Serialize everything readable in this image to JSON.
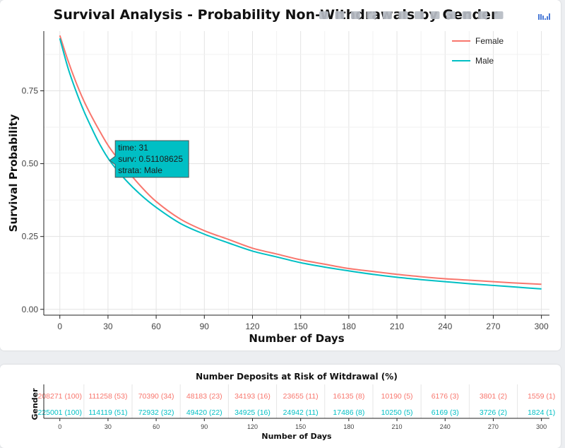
{
  "chart_data": {
    "type": "line",
    "title": "Survival Analysis - Probability Non-Withdrawals by Gender",
    "xlabel": "Number of Days",
    "ylabel": "Survival Probability",
    "xlim": [
      -10,
      305
    ],
    "ylim": [
      -0.02,
      0.955
    ],
    "x_ticks": [
      0,
      30,
      60,
      90,
      120,
      150,
      180,
      210,
      240,
      270,
      300
    ],
    "x_tick_labels": [
      "0",
      "30",
      "60",
      "90",
      "120",
      "150",
      "180",
      "210",
      "240",
      "270",
      "300"
    ],
    "y_ticks": [
      0,
      0.25,
      0.5,
      0.75
    ],
    "y_tick_labels": [
      "0.00",
      "0.25",
      "0.50",
      "0.75"
    ],
    "grid": true,
    "legend_position": "top-right",
    "series": [
      {
        "name": "Female",
        "color": "#f8766d",
        "x": [
          0,
          5,
          10,
          15,
          20,
          25,
          31,
          40,
          50,
          60,
          75,
          90,
          105,
          120,
          135,
          150,
          165,
          180,
          195,
          210,
          225,
          240,
          255,
          270,
          285,
          300
        ],
        "y": [
          0.94,
          0.855,
          0.78,
          0.715,
          0.66,
          0.61,
          0.555,
          0.49,
          0.425,
          0.37,
          0.31,
          0.27,
          0.24,
          0.21,
          0.19,
          0.17,
          0.155,
          0.14,
          0.13,
          0.12,
          0.112,
          0.105,
          0.1,
          0.095,
          0.09,
          0.086
        ]
      },
      {
        "name": "Male",
        "color": "#00bfc4",
        "x": [
          0,
          5,
          10,
          15,
          20,
          25,
          31,
          40,
          50,
          60,
          75,
          90,
          105,
          120,
          135,
          150,
          165,
          180,
          195,
          210,
          225,
          240,
          255,
          270,
          285,
          300
        ],
        "y": [
          0.93,
          0.83,
          0.75,
          0.68,
          0.62,
          0.565,
          0.511,
          0.45,
          0.395,
          0.35,
          0.295,
          0.258,
          0.228,
          0.2,
          0.18,
          0.16,
          0.145,
          0.132,
          0.12,
          0.11,
          0.102,
          0.095,
          0.088,
          0.082,
          0.076,
          0.07
        ]
      }
    ],
    "tooltip": {
      "series": "Male",
      "x": 31,
      "y": 0.51108625,
      "lines": [
        "time: 31",
        "surv: 0.51108625",
        "strata: Male"
      ]
    }
  },
  "risk_table": {
    "title": "Number Deposits at Risk of Witdrawal (%)",
    "ylabel": "Gender",
    "xlabel": "Number of Days",
    "x_ticks": [
      "0",
      "30",
      "60",
      "90",
      "120",
      "150",
      "180",
      "210",
      "240",
      "270",
      "300"
    ],
    "rows": [
      {
        "name": "Female",
        "color": "#f8766d",
        "cells": [
          "208271 (100)",
          "111258 (53)",
          "70390 (34)",
          "48183 (23)",
          "34193 (16)",
          "23655 (11)",
          "16135 (8)",
          "10190 (5)",
          "6176 (3)",
          "3801 (2)",
          "1559 (1)"
        ]
      },
      {
        "name": "Male",
        "color": "#00bfc4",
        "cells": [
          "225001 (100)",
          "114119 (51)",
          "72932 (32)",
          "49420 (22)",
          "34925 (16)",
          "24942 (11)",
          "17486 (8)",
          "10250 (5)",
          "6169 (3)",
          "3726 (2)",
          "1824 (1)"
        ]
      }
    ]
  },
  "modebar": {
    "buttons": [
      "camera-icon",
      "zoom-icon",
      "pan-icon",
      "box-select-icon",
      "lasso-icon",
      "zoom-in-icon",
      "zoom-out-icon",
      "autoscale-icon",
      "reset-axes-icon",
      "spike-lines-icon",
      "hover-closest-icon",
      "hover-compare-icon",
      "plotly-logo-icon"
    ]
  }
}
